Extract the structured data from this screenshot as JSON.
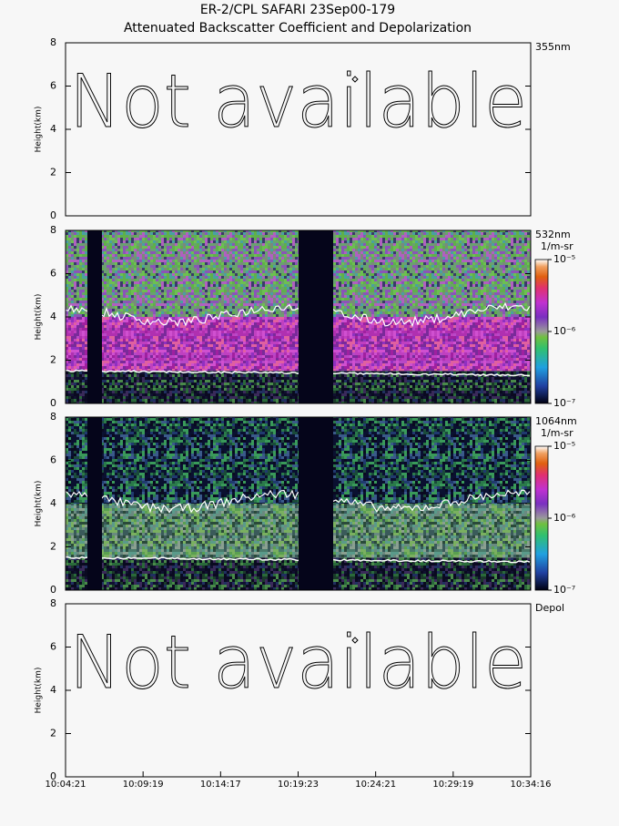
{
  "chart_data": [
    {
      "type": "heatmap",
      "title": "ER-2/CPL SAFARI 23Sep00-179",
      "subtitle": "Attenuated Backscatter Coefficient and Depolarization",
      "label": "355nm",
      "annotation": "Not available",
      "ylabel": "Height(km)",
      "ylim": [
        0,
        8
      ],
      "yticks": [
        0,
        2,
        4,
        6,
        8
      ]
    },
    {
      "type": "heatmap",
      "label": "532nm",
      "ylabel": "Height(km)",
      "ylim": [
        0,
        8
      ],
      "yticks": [
        0,
        2,
        4,
        6,
        8
      ],
      "colorbar": {
        "label": "1/m-sr",
        "log": true,
        "lim": [
          1e-07,
          1e-05
        ],
        "ticks": [
          {
            "value": 1e-07,
            "label": "10⁻⁷"
          },
          {
            "value": 1e-06,
            "label": "10⁻⁶"
          },
          {
            "value": 1e-05,
            "label": "10⁻⁵"
          }
        ]
      }
    },
    {
      "type": "heatmap",
      "label": "1064nm",
      "ylabel": "Height(km)",
      "ylim": [
        0,
        8
      ],
      "yticks": [
        0,
        2,
        4,
        6,
        8
      ],
      "colorbar": {
        "label": "1/m-sr",
        "log": true,
        "lim": [
          1e-07,
          1e-05
        ],
        "ticks": [
          {
            "value": 1e-07,
            "label": "10⁻⁷"
          },
          {
            "value": 1e-06,
            "label": "10⁻⁶"
          },
          {
            "value": 1e-05,
            "label": "10⁻⁵"
          }
        ]
      }
    },
    {
      "type": "heatmap",
      "label": "Depol",
      "annotation": "Not available",
      "ylabel": "Height(km)",
      "ylim": [
        0,
        8
      ],
      "yticks": [
        0,
        2,
        4,
        6,
        8
      ],
      "categories": [
        "10:04:21",
        "10:09:19",
        "10:14:17",
        "10:19:23",
        "10:24:21",
        "10:29:19",
        "10:34:16"
      ]
    }
  ]
}
